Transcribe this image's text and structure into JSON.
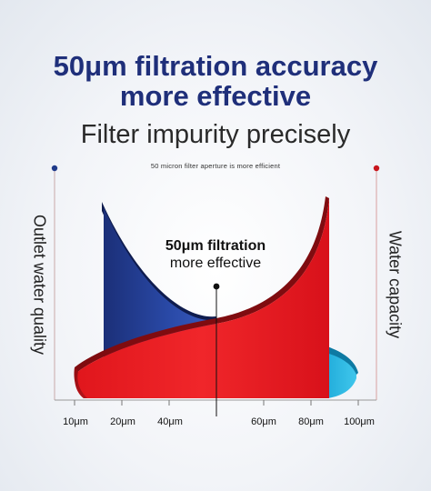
{
  "headline": {
    "line1": "50μm filtration accuracy",
    "line2": "more effective"
  },
  "subtitle": "Filter impurity precisely",
  "note": "50 micron filter aperture is more efficient",
  "left_axis_label": "Outlet water quality",
  "right_axis_label": "Water capacity",
  "callout": {
    "title": "50μm filtration",
    "subtitle": "more effective"
  },
  "x_ticks": [
    {
      "label": "10μm",
      "name": "tick-label-10um"
    },
    {
      "label": "20μm",
      "name": "tick-label-20um"
    },
    {
      "label": "40μm",
      "name": "tick-label-40um"
    },
    {
      "label": "60μm",
      "name": "tick-label-60um"
    },
    {
      "label": "80μm",
      "name": "tick-label-80um"
    },
    {
      "label": "100μm",
      "name": "tick-label-100um"
    }
  ],
  "colors": {
    "headline": "#1f2f7a",
    "quality_curve": "#1f3a8a",
    "capacity_curve": "#e3141b",
    "accent_cyan": "#1ab0de",
    "left_dot": "#1f3a8a",
    "right_dot": "#c8161d"
  }
}
